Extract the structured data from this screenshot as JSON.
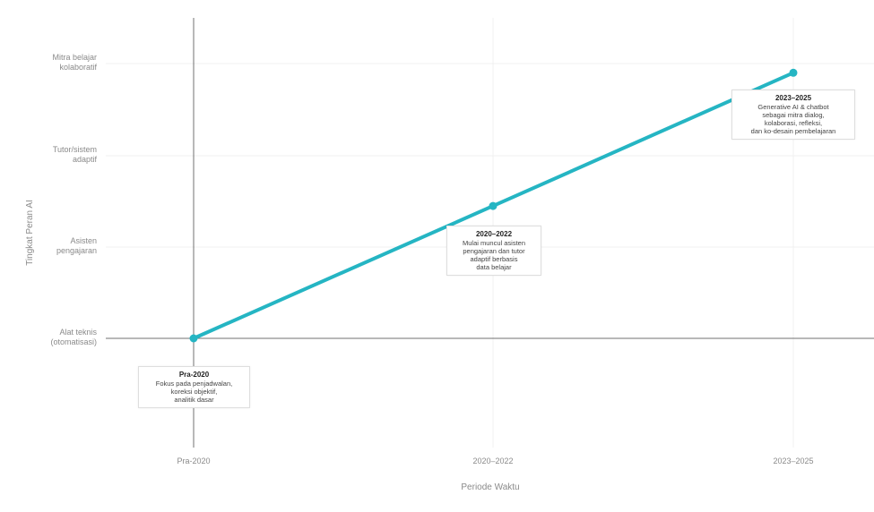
{
  "chart_data": {
    "type": "line",
    "xlabel": "Periode Waktu",
    "ylabel": "Tingkat Peran AI",
    "x_categories": [
      "Pra-2020",
      "2020–2022",
      "2023–2025"
    ],
    "y_categories": [
      "Alat teknis (otomatisasi)",
      "Asisten pengajaran",
      "Tutor/sistem adaptif",
      "Mitra belajar kolaboratif"
    ],
    "y_tick_lines": [
      [
        "Alat teknis",
        "(otomatisasi)"
      ],
      [
        "Asisten",
        "pengajaran"
      ],
      [
        "Tutor/sistem",
        "adaptif"
      ],
      [
        "Mitra belajar",
        "kolaboratif"
      ]
    ],
    "series": [
      {
        "x": [
          "Pra-2020",
          "2020–2022",
          "2023–2025"
        ],
        "y": [
          0,
          1.45,
          2.9
        ],
        "color": "#25b5c3"
      }
    ],
    "annotations": [
      {
        "title": "Pra-2020",
        "text": "Fokus pada penjadwalan,\nkoreksi objektif,\nanalitik dasar"
      },
      {
        "title": "2020–2022",
        "text": "Mulai muncul asisten\npengajaran dan tutor\nadaptif berbasis\ndata belajar"
      },
      {
        "title": "2023–2025",
        "text": "Generative AI & chatbot\nsebagai mitra dialog,\nkolaborasi, refleksi,\ndan ko-desain pembelajaran"
      }
    ],
    "grid": true
  }
}
